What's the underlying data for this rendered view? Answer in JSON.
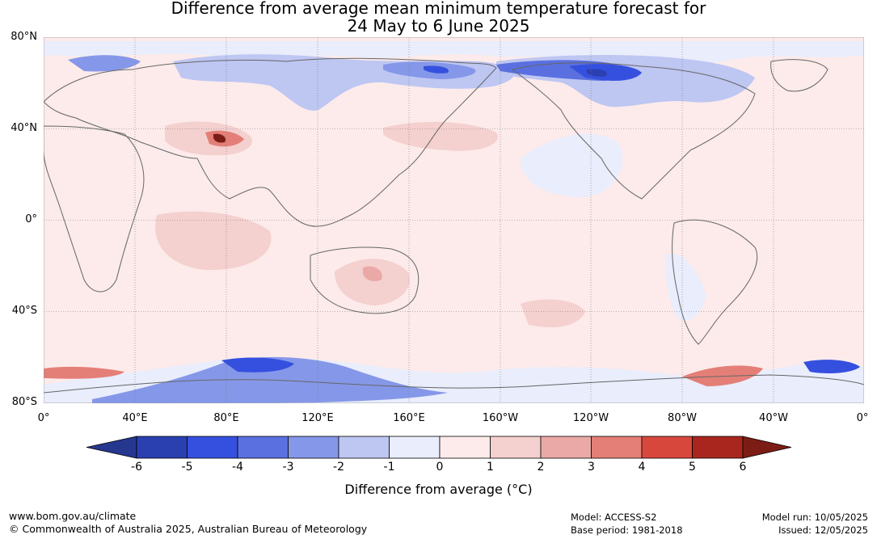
{
  "header": {
    "title_line1": "Difference from average mean minimum temperature forecast for",
    "title_line2": "24 May to 6 June 2025"
  },
  "map": {
    "projection": "equirectangular",
    "lat_range": [
      -80,
      80
    ],
    "lon_start": 0,
    "lat_labels": [
      "80°N",
      "40°N",
      "0°",
      "40°S",
      "80°S"
    ],
    "lon_labels": [
      "0°",
      "40°E",
      "80°E",
      "120°E",
      "160°E",
      "160°W",
      "120°W",
      "80°W",
      "40°W",
      "0°"
    ],
    "background_anomaly": "0 to 1",
    "features": [
      {
        "region": "Northern Eurasia / Siberia",
        "anomaly": "-1 to -4"
      },
      {
        "region": "Alaska / Northern Canada / Arctic",
        "anomaly": "-1 to -6"
      },
      {
        "region": "Tibetan Plateau",
        "anomaly": "3 to 6"
      },
      {
        "region": "Antarctic coast south of Indian Ocean",
        "anomaly": "-1 to -5"
      },
      {
        "region": "Antarctic Peninsula / Weddell Sea",
        "anomaly": "1 to 4"
      },
      {
        "region": "Central Australia",
        "anomaly": "1 to 3"
      }
    ]
  },
  "colorbar": {
    "ticks": [
      "-6",
      "-5",
      "-4",
      "-3",
      "-2",
      "-1",
      "0",
      "1",
      "2",
      "3",
      "4",
      "5",
      "6"
    ],
    "colors": [
      "#26378f",
      "#2b40b0",
      "#3550df",
      "#5a70e0",
      "#8597e8",
      "#bec6f2",
      "#e9edfc",
      "#fcebea",
      "#f4d0cf",
      "#eaa9a6",
      "#e47f78",
      "#d8473c",
      "#a8261d",
      "#7b1d14"
    ],
    "title": "Difference from average (°C)"
  },
  "footer": {
    "website": "www.bom.gov.au/climate",
    "copyright": "© Commonwealth of Australia 2025, Australian Bureau of Meteorology",
    "model": "Model: ACCESS-S2",
    "base_period": "Base period: 1981-2018",
    "model_run": "Model run: 10/05/2025",
    "issued": "Issued: 12/05/2025"
  }
}
